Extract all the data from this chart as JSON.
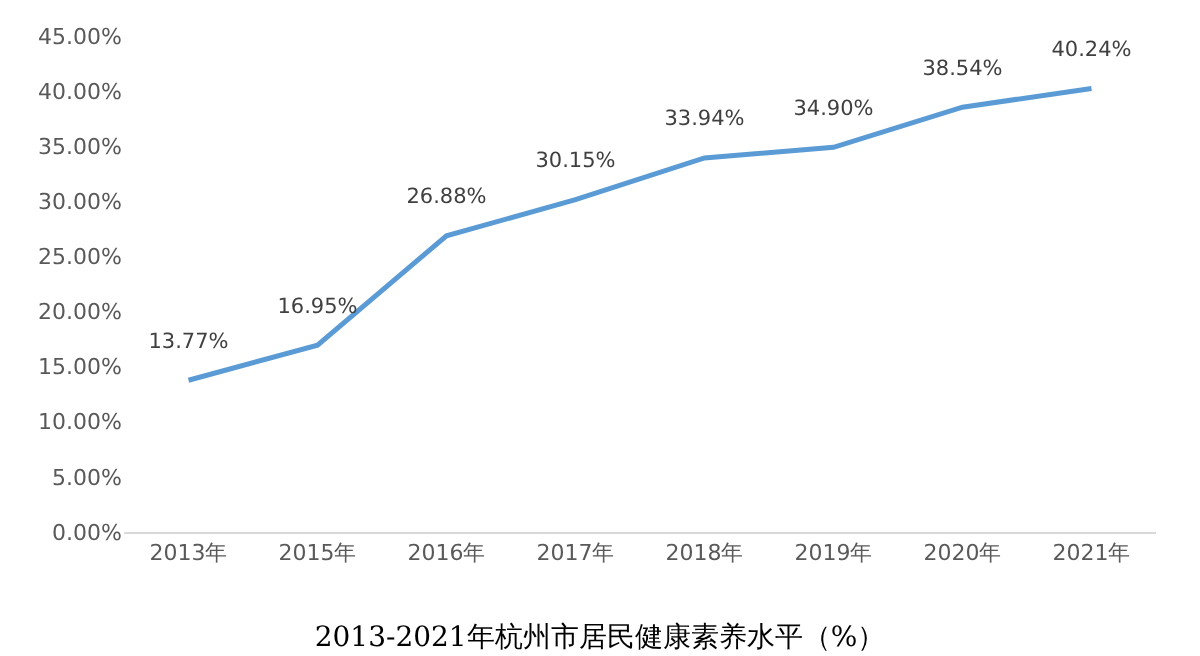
{
  "chart_data": {
    "type": "line",
    "title": "2013-2021年杭州市居民健康素养水平（%）",
    "categories": [
      "2013年",
      "2015年",
      "2016年",
      "2017年",
      "2018年",
      "2019年",
      "2020年",
      "2021年"
    ],
    "series": [
      {
        "color": "#5b9bd5",
        "values": [
          13.77,
          16.95,
          26.88,
          30.15,
          33.94,
          34.9,
          38.54,
          40.24
        ],
        "value_labels": [
          "13.77%",
          "16.95%",
          "26.88%",
          "30.15%",
          "33.94%",
          "34.90%",
          "38.54%",
          "40.24%"
        ]
      }
    ],
    "ylim": [
      0,
      45
    ],
    "yticks": [
      {
        "value": 0,
        "label": "0.00%"
      },
      {
        "value": 5,
        "label": "5.00%"
      },
      {
        "value": 10,
        "label": "10.00%"
      },
      {
        "value": 15,
        "label": "15.00%"
      },
      {
        "value": 20,
        "label": "20.00%"
      },
      {
        "value": 25,
        "label": "25.00%"
      },
      {
        "value": 30,
        "label": "30.00%"
      },
      {
        "value": 35,
        "label": "35.00%"
      },
      {
        "value": 40,
        "label": "40.00%"
      },
      {
        "value": 45,
        "label": "45.00%"
      }
    ],
    "line_style": "solid"
  }
}
